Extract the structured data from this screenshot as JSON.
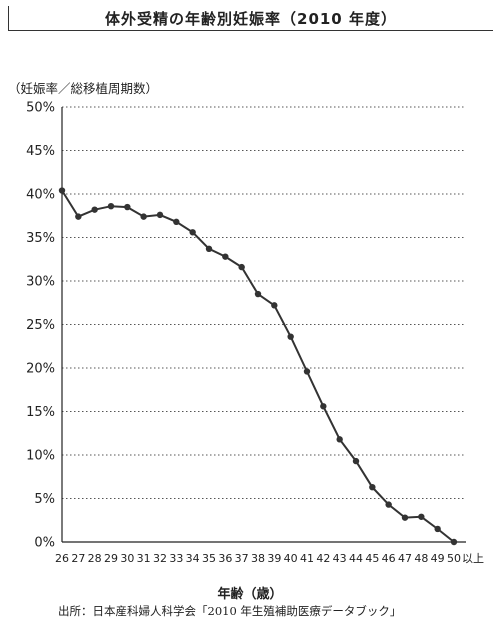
{
  "title": "体外受精の年齢別妊娠率（2010 年度）",
  "source": "出所：日本産科婦人科学会「2010 年生殖補助医療データブック」",
  "chart_data": {
    "type": "line",
    "title": "体外受精の年齢別妊娠率（2010 年度）",
    "ylabel": "（妊娠率／総移植周期数）",
    "xlabel": "年齢（歳）",
    "x_tick_labels": [
      "26",
      "27",
      "28",
      "29",
      "30",
      "31",
      "32",
      "33",
      "34",
      "35",
      "36",
      "37",
      "38",
      "39",
      "40",
      "41",
      "42",
      "43",
      "44",
      "45",
      "46",
      "47",
      "48",
      "49",
      "50"
    ],
    "x_last_suffix": "以上",
    "y_ticks": [
      0,
      5,
      10,
      15,
      20,
      25,
      30,
      35,
      40,
      45,
      50
    ],
    "y_tick_labels": [
      "0%",
      "5%",
      "10%",
      "15%",
      "20%",
      "25%",
      "30%",
      "35%",
      "40%",
      "45%",
      "50%"
    ],
    "ylim": [
      0,
      50
    ],
    "grid": "horizontal-dotted",
    "series": [
      {
        "x": [
          26,
          27,
          28,
          29,
          30,
          31,
          32,
          33,
          34,
          35,
          36,
          37,
          38,
          39,
          40,
          41,
          42,
          43,
          44,
          45,
          46,
          47,
          48,
          49,
          50
        ],
        "values": [
          40.4,
          37.4,
          38.2,
          38.6,
          38.5,
          37.4,
          37.6,
          36.8,
          35.6,
          33.7,
          32.8,
          31.6,
          28.5,
          27.2,
          23.6,
          19.6,
          15.6,
          11.8,
          9.3,
          6.3,
          4.3,
          2.8,
          2.9,
          1.5,
          0.0
        ]
      }
    ]
  }
}
